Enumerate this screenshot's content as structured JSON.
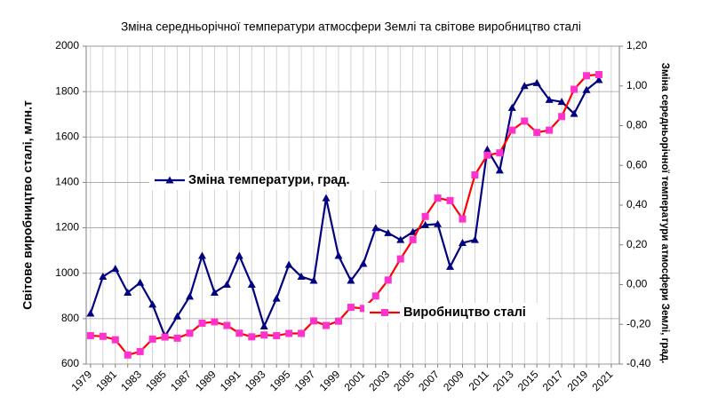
{
  "chart_data": {
    "type": "line",
    "title": "Зміна середньорічної температури атмосфери Землі та світове виробництво сталі",
    "ylabel": "Світове виробництво сталі, млн.т",
    "y2label": "Зміна середньорічної температури атмосфери Землі, град.",
    "categories": [
      "1979",
      null,
      "1981",
      null,
      "1983",
      null,
      "1985",
      null,
      "1987",
      null,
      "1989",
      null,
      "1991",
      null,
      "1993",
      null,
      "1995",
      null,
      "1997",
      null,
      "1999",
      null,
      "2001",
      null,
      "2003",
      null,
      "2005",
      null,
      "2007",
      null,
      "2009",
      null,
      "2011",
      null,
      "2013",
      null,
      "2015",
      null,
      "2017",
      null,
      "2019",
      null,
      "2021"
    ],
    "ylim": [
      600,
      2000
    ],
    "yticks": [
      600,
      800,
      1000,
      1200,
      1400,
      1600,
      1800,
      2000
    ],
    "y2lim": [
      -0.4,
      1.2
    ],
    "y2ticks": [
      {
        "value": -0.4,
        "label": "-0,40"
      },
      {
        "value": -0.2,
        "label": "-0,20"
      },
      {
        "value": 0,
        "label": "0,00"
      },
      {
        "value": 0.2,
        "label": "0,20"
      },
      {
        "value": 0.4,
        "label": "0,40"
      },
      {
        "value": 0.6,
        "label": "0,60"
      },
      {
        "value": 0.8,
        "label": "0,80"
      },
      {
        "value": 1.0,
        "label": "1,00"
      },
      {
        "value": 1.2,
        "label": "1,20"
      }
    ],
    "grid": true,
    "series": [
      {
        "name": "Зміна температури, град.",
        "axis": "y2",
        "color": "#000080",
        "marker": "triangle",
        "values": [
          -0.145,
          0.04,
          0.08,
          -0.04,
          0.01,
          -0.1,
          -0.26,
          -0.16,
          -0.06,
          0.145,
          -0.04,
          0.0,
          0.145,
          0.0,
          -0.21,
          -0.07,
          0.1,
          0.04,
          0.02,
          0.435,
          0.145,
          0.02,
          0.105,
          0.285,
          0.26,
          0.225,
          0.265,
          0.3,
          0.305,
          0.09,
          0.21,
          0.225,
          0.68,
          0.575,
          0.89,
          1.0,
          1.015,
          0.93,
          0.92,
          0.86,
          0.98,
          1.03,
          null
        ]
      },
      {
        "name": "Виробництво сталі",
        "color": "#ff0000",
        "marker_color": "#ff33cc",
        "marker": "square",
        "values": [
          725,
          722,
          707,
          640,
          655,
          710,
          719,
          714,
          736,
          780,
          786,
          770,
          736,
          720,
          728,
          725,
          735,
          735,
          790,
          770,
          789,
          850,
          845,
          900,
          970,
          1063,
          1148,
          1250,
          1331,
          1320,
          1239,
          1433,
          1520,
          1530,
          1630,
          1670,
          1620,
          1630,
          1690,
          1810,
          1870,
          1875,
          null
        ]
      }
    ]
  }
}
